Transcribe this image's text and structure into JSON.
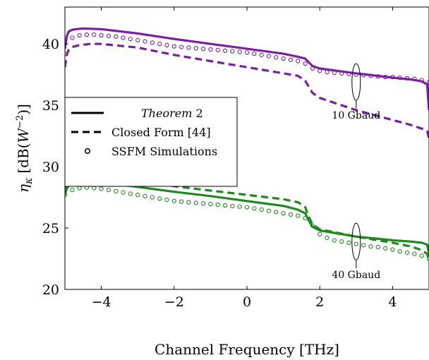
{
  "chart_data": {
    "type": "line",
    "xlabel": "Channel Frequency [THz]",
    "ylabel_symbol": "η",
    "ylabel_sub": "κ",
    "ylabel_unit_open": "[dB(",
    "ylabel_unit_base": "W",
    "ylabel_unit_exp": "−2",
    "ylabel_unit_close": ")]",
    "xlim": [
      -5,
      5
    ],
    "ylim": [
      20,
      43
    ],
    "xticks": [
      -4,
      -2,
      0,
      2,
      4
    ],
    "xtick_labels": [
      "−4",
      "−2",
      "0",
      "2",
      "4"
    ],
    "yticks": [
      20,
      25,
      30,
      35,
      40
    ],
    "ytick_labels": [
      "20",
      "25",
      "30",
      "35",
      "40"
    ],
    "legend": {
      "placement": "center-left",
      "entries": [
        {
          "style": "solid",
          "label_italic": "Theorem",
          "label_rest": " 2"
        },
        {
          "style": "dashed",
          "label": "Closed Form [44]"
        },
        {
          "style": "markers",
          "label": "SSFM Simulations"
        }
      ]
    },
    "annotations": [
      {
        "text": "10 Gbaud",
        "x": 3.0,
        "y": 36.9
      },
      {
        "text": "40 Gbaud",
        "x": 3.0,
        "y": 23.9
      }
    ],
    "groups": [
      {
        "label": "10 Gbaud",
        "color": "#7a1fa2",
        "theorem": {
          "x": [
            -5,
            -4.95,
            -4.9,
            -4.8,
            -4.7,
            -4.5,
            -4.0,
            -3.0,
            -2.0,
            -1.0,
            0.0,
            1.0,
            1.4,
            1.6,
            1.7,
            1.8,
            2.0,
            3.0,
            4.0,
            4.5,
            4.8,
            4.95,
            5
          ],
          "y": [
            39.6,
            40.6,
            41.0,
            41.15,
            41.2,
            41.25,
            41.2,
            40.85,
            40.4,
            40.0,
            39.6,
            39.2,
            38.95,
            38.8,
            38.5,
            38.2,
            38.0,
            37.6,
            37.25,
            37.1,
            36.95,
            36.7,
            34.6
          ]
        },
        "closed_form": {
          "x": [
            -5,
            -4.95,
            -4.9,
            -4.8,
            -4.6,
            -4.3,
            -4.0,
            -3.0,
            -2.0,
            -1.0,
            0.0,
            1.0,
            1.4,
            1.6,
            1.7,
            1.8,
            2.0,
            3.0,
            4.0,
            4.5,
            4.8,
            4.95,
            5
          ],
          "y": [
            38.1,
            39.1,
            39.5,
            39.75,
            39.9,
            40.0,
            40.0,
            39.7,
            39.1,
            38.6,
            38.1,
            37.6,
            37.4,
            37.0,
            36.5,
            36.0,
            35.6,
            34.6,
            33.8,
            33.4,
            33.1,
            32.9,
            32.3
          ]
        },
        "ssfm": {
          "x": [
            -5.0,
            -4.8,
            -4.6,
            -4.4,
            -4.2,
            -4.0,
            -3.8,
            -3.6,
            -3.4,
            -3.2,
            -3.0,
            -2.8,
            -2.6,
            -2.4,
            -2.2,
            -2.0,
            -1.8,
            -1.6,
            -1.4,
            -1.2,
            -1.0,
            -0.8,
            -0.6,
            -0.4,
            -0.2,
            0.0,
            0.2,
            0.4,
            0.6,
            0.8,
            1.0,
            1.2,
            1.4,
            1.6,
            1.8,
            2.0,
            2.2,
            2.4,
            2.6,
            2.8,
            3.0,
            3.2,
            3.4,
            3.6,
            3.8,
            4.0,
            4.2,
            4.4,
            4.6,
            4.8,
            5.0
          ],
          "y": [
            39.2,
            40.5,
            40.7,
            40.75,
            40.75,
            40.7,
            40.65,
            40.6,
            40.5,
            40.4,
            40.3,
            40.2,
            40.1,
            40.0,
            39.9,
            39.8,
            39.75,
            39.7,
            39.65,
            39.6,
            39.55,
            39.5,
            39.45,
            39.4,
            39.35,
            39.3,
            39.2,
            39.1,
            39.0,
            38.9,
            38.8,
            38.7,
            38.6,
            38.4,
            38.0,
            37.8,
            37.7,
            37.65,
            37.6,
            37.55,
            37.5,
            37.45,
            37.4,
            37.35,
            37.3,
            37.3,
            37.25,
            37.2,
            37.15,
            37.05,
            36.9
          ]
        }
      },
      {
        "label": "40 Gbaud",
        "color": "#1e8a1e",
        "theorem": {
          "x": [
            -5,
            -4.95,
            -4.9,
            -4.8,
            -4.6,
            -4.3,
            -4.0,
            -3.0,
            -2.0,
            -1.0,
            0.0,
            1.0,
            1.4,
            1.6,
            1.7,
            1.8,
            2.0,
            3.0,
            4.0,
            4.5,
            4.8,
            4.95,
            5
          ],
          "y": [
            27.7,
            28.2,
            28.45,
            28.6,
            28.75,
            28.8,
            28.7,
            28.35,
            27.95,
            27.6,
            27.2,
            26.8,
            26.5,
            26.2,
            25.6,
            25.1,
            24.8,
            24.3,
            24.0,
            23.9,
            23.8,
            23.65,
            22.9
          ]
        },
        "closed_form": {
          "x": [
            -5,
            -4.95,
            -4.9,
            -4.8,
            -4.6,
            -4.3,
            -4.0,
            -3.0,
            -2.0,
            -1.0,
            0.0,
            1.0,
            1.4,
            1.6,
            1.7,
            1.8,
            2.0,
            3.0,
            4.0,
            4.5,
            4.8,
            4.95,
            5
          ],
          "y": [
            28.0,
            28.5,
            28.7,
            28.8,
            28.9,
            28.95,
            28.95,
            28.75,
            28.4,
            28.05,
            27.7,
            27.35,
            27.1,
            26.7,
            25.9,
            25.3,
            24.9,
            24.3,
            23.8,
            23.5,
            23.2,
            22.9,
            22.4
          ]
        },
        "ssfm": {
          "x": [
            -5.0,
            -4.8,
            -4.6,
            -4.4,
            -4.2,
            -4.0,
            -3.8,
            -3.6,
            -3.4,
            -3.2,
            -3.0,
            -2.8,
            -2.6,
            -2.4,
            -2.2,
            -2.0,
            -1.8,
            -1.6,
            -1.4,
            -1.2,
            -1.0,
            -0.8,
            -0.6,
            -0.4,
            -0.2,
            0.0,
            0.2,
            0.4,
            0.6,
            0.8,
            1.0,
            1.2,
            1.4,
            1.6,
            1.8,
            2.0,
            2.2,
            2.4,
            2.6,
            2.8,
            3.0,
            3.2,
            3.4,
            3.6,
            3.8,
            4.0,
            4.2,
            4.4,
            4.6,
            4.8,
            5.0
          ],
          "y": [
            27.7,
            28.1,
            28.25,
            28.3,
            28.25,
            28.2,
            28.1,
            28.0,
            27.9,
            27.8,
            27.7,
            27.6,
            27.5,
            27.4,
            27.3,
            27.2,
            27.15,
            27.1,
            27.05,
            27.0,
            26.95,
            26.9,
            26.85,
            26.8,
            26.75,
            26.7,
            26.6,
            26.5,
            26.4,
            26.3,
            26.2,
            26.1,
            26.0,
            25.8,
            25.2,
            24.5,
            24.2,
            24.0,
            23.9,
            23.8,
            23.7,
            23.6,
            23.5,
            23.45,
            23.35,
            23.25,
            23.1,
            23.0,
            22.9,
            22.75,
            22.5
          ]
        }
      }
    ]
  }
}
